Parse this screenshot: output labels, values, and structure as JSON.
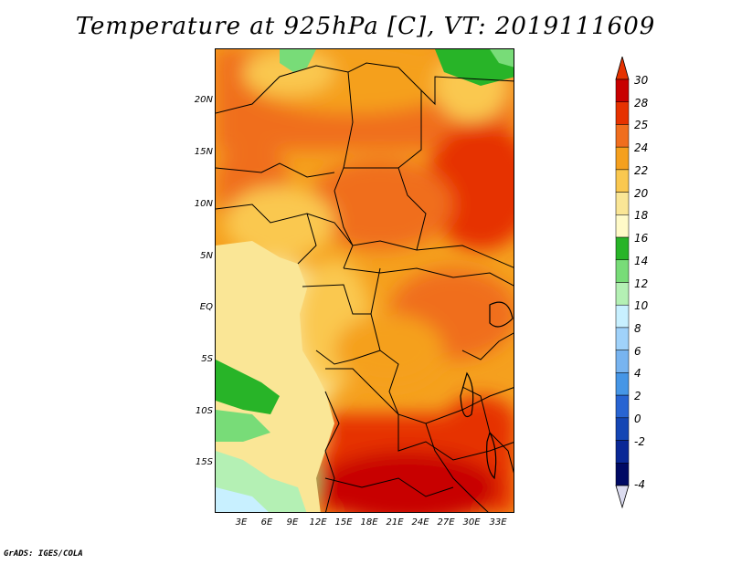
{
  "title": "Temperature at 925hPa [C], VT: 2019111609",
  "footer": "GrADS: IGES/COLA",
  "lat_labels": [
    "20N",
    "15N",
    "10N",
    "5N",
    "EQ",
    "5S",
    "10S",
    "15S"
  ],
  "lon_labels": [
    "3E",
    "6E",
    "9E",
    "12E",
    "15E",
    "18E",
    "21E",
    "24E",
    "27E",
    "30E",
    "33E"
  ],
  "colorbar": {
    "labels": [
      "30",
      "28",
      "25",
      "24",
      "22",
      "20",
      "18",
      "16",
      "14",
      "12",
      "10",
      "8",
      "6",
      "4",
      "2",
      "0",
      "-2",
      "-4"
    ],
    "colors": [
      "#c80000",
      "#e63200",
      "#f06e1e",
      "#f5a01e",
      "#fac850",
      "#fae696",
      "#fffac8",
      "#28b428",
      "#78dc78",
      "#b4f0b4",
      "#c8f0ff",
      "#a0d2fa",
      "#78b4f0",
      "#4696e6",
      "#2864d2",
      "#1446b4",
      "#0a2896",
      "#000a64"
    ],
    "over_color": "#e63200",
    "under_color": "#dcdcf0"
  }
}
